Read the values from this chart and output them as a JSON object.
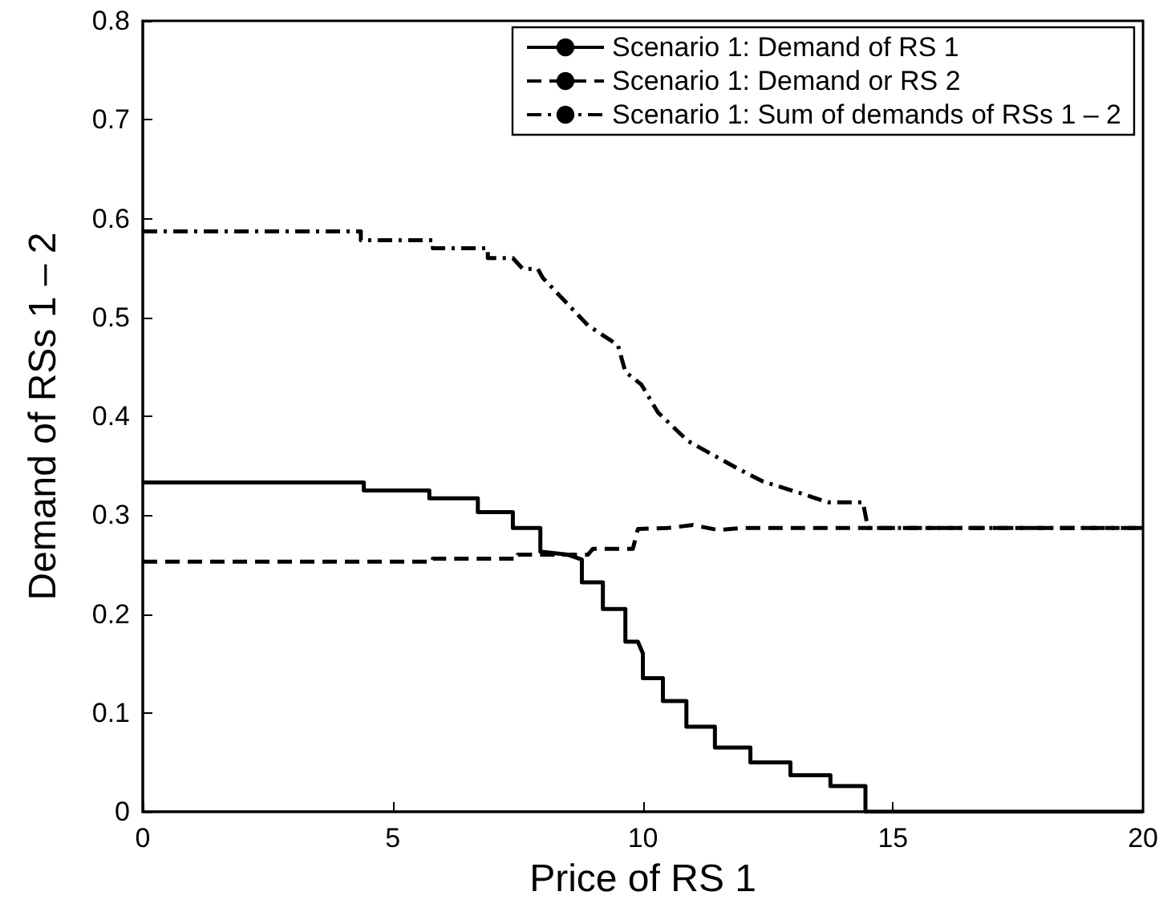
{
  "chart_data": {
    "type": "line",
    "xlabel": "Price of RS 1",
    "ylabel": "Demand of RSs 1 – 2",
    "xlim": [
      0,
      20
    ],
    "ylim": [
      0,
      0.8
    ],
    "xticks": [
      0,
      5,
      10,
      15,
      20
    ],
    "yticks": [
      0,
      0.1,
      0.2,
      0.3,
      0.4,
      0.5,
      0.6,
      0.7,
      0.8
    ],
    "grid": false,
    "legend": "top right",
    "marker": "none",
    "series": [
      {
        "name": "Scenario 1: Demand of RS 1",
        "color": "#000000",
        "line_style": "solid",
        "x": [
          0,
          4.42,
          4.42,
          5.73,
          5.73,
          6.7,
          6.7,
          7.4,
          7.4,
          7.95,
          7.95,
          8.5,
          8.78,
          8.78,
          9.2,
          9.2,
          9.65,
          9.65,
          9.9,
          10.0,
          10.0,
          10.4,
          10.4,
          10.87,
          10.87,
          11.44,
          11.44,
          12.15,
          12.15,
          12.95,
          12.95,
          13.75,
          13.75,
          14.45,
          14.45,
          20
        ],
        "values": [
          0.333,
          0.333,
          0.325,
          0.325,
          0.317,
          0.317,
          0.303,
          0.303,
          0.287,
          0.287,
          0.263,
          0.26,
          0.255,
          0.232,
          0.232,
          0.205,
          0.205,
          0.172,
          0.172,
          0.16,
          0.135,
          0.135,
          0.112,
          0.112,
          0.086,
          0.086,
          0.065,
          0.065,
          0.05,
          0.05,
          0.037,
          0.037,
          0.026,
          0.026,
          0,
          0
        ]
      },
      {
        "name": "Scenario 1: Demand or RS 2",
        "color": "#000000",
        "line_style": "dashed",
        "x": [
          0,
          5.8,
          5.8,
          7.5,
          7.5,
          8.9,
          9.0,
          9.8,
          9.9,
          10.5,
          11.0,
          11.5,
          12.0,
          20
        ],
        "values": [
          0.253,
          0.253,
          0.256,
          0.256,
          0.26,
          0.26,
          0.266,
          0.266,
          0.286,
          0.287,
          0.29,
          0.285,
          0.287,
          0.287
        ]
      },
      {
        "name": "Scenario 1: Sum of demands of RSs 1 – 2",
        "color": "#000000",
        "line_style": "dashdot",
        "x": [
          0,
          4.36,
          4.36,
          5.8,
          5.8,
          6.9,
          6.9,
          7.4,
          7.6,
          7.9,
          8.0,
          8.9,
          9.5,
          9.65,
          9.97,
          10.3,
          10.9,
          11.9,
          12.4,
          13.1,
          13.7,
          14.4,
          14.5,
          20
        ],
        "values": [
          0.587,
          0.587,
          0.578,
          0.578,
          0.57,
          0.57,
          0.56,
          0.56,
          0.549,
          0.549,
          0.54,
          0.492,
          0.472,
          0.445,
          0.432,
          0.404,
          0.375,
          0.347,
          0.334,
          0.323,
          0.313,
          0.313,
          0.287,
          0.287
        ]
      }
    ]
  }
}
